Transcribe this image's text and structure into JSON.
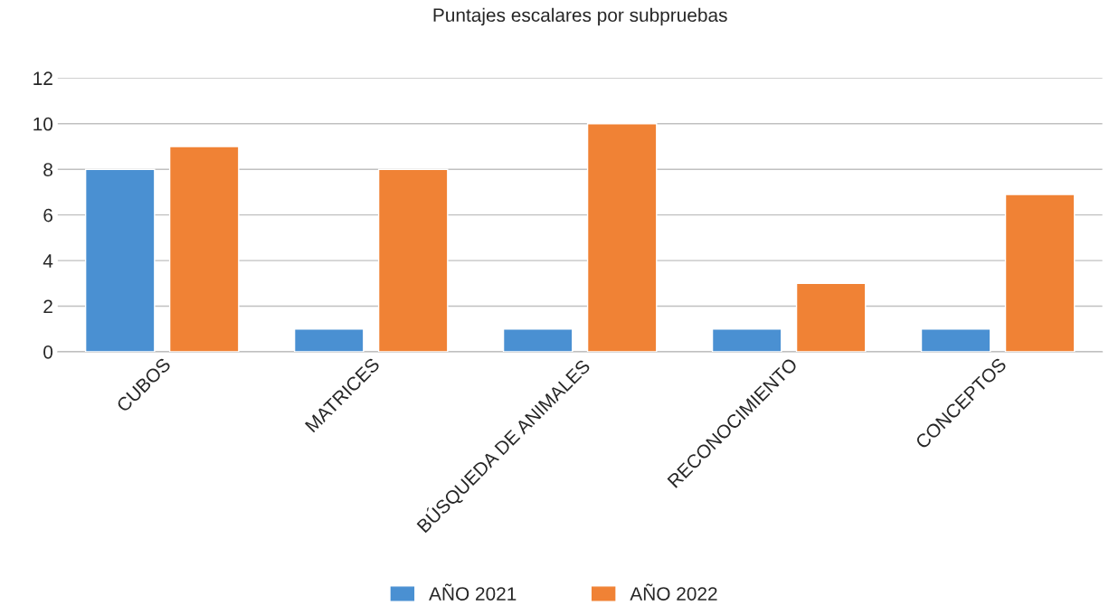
{
  "chart_data": {
    "type": "bar",
    "title": "Puntajes escalares por subpruebas",
    "categories": [
      "CUBOS",
      "MATRICES",
      "BÚSQUEDA DE ANIMALES",
      "RECONOCIMIENTO",
      "CONCEPTOS"
    ],
    "series": [
      {
        "name": "AÑO 2021",
        "color": "#4a90d2",
        "values": [
          8,
          1,
          1,
          1,
          1
        ]
      },
      {
        "name": "AÑO 2022",
        "color": "#f08235",
        "values": [
          9,
          8,
          10,
          3,
          6.9
        ]
      }
    ],
    "ylim": [
      0,
      12
    ],
    "yticks": [
      0,
      2,
      4,
      6,
      8,
      10,
      12
    ],
    "grid": "y",
    "legend": "bottom"
  }
}
